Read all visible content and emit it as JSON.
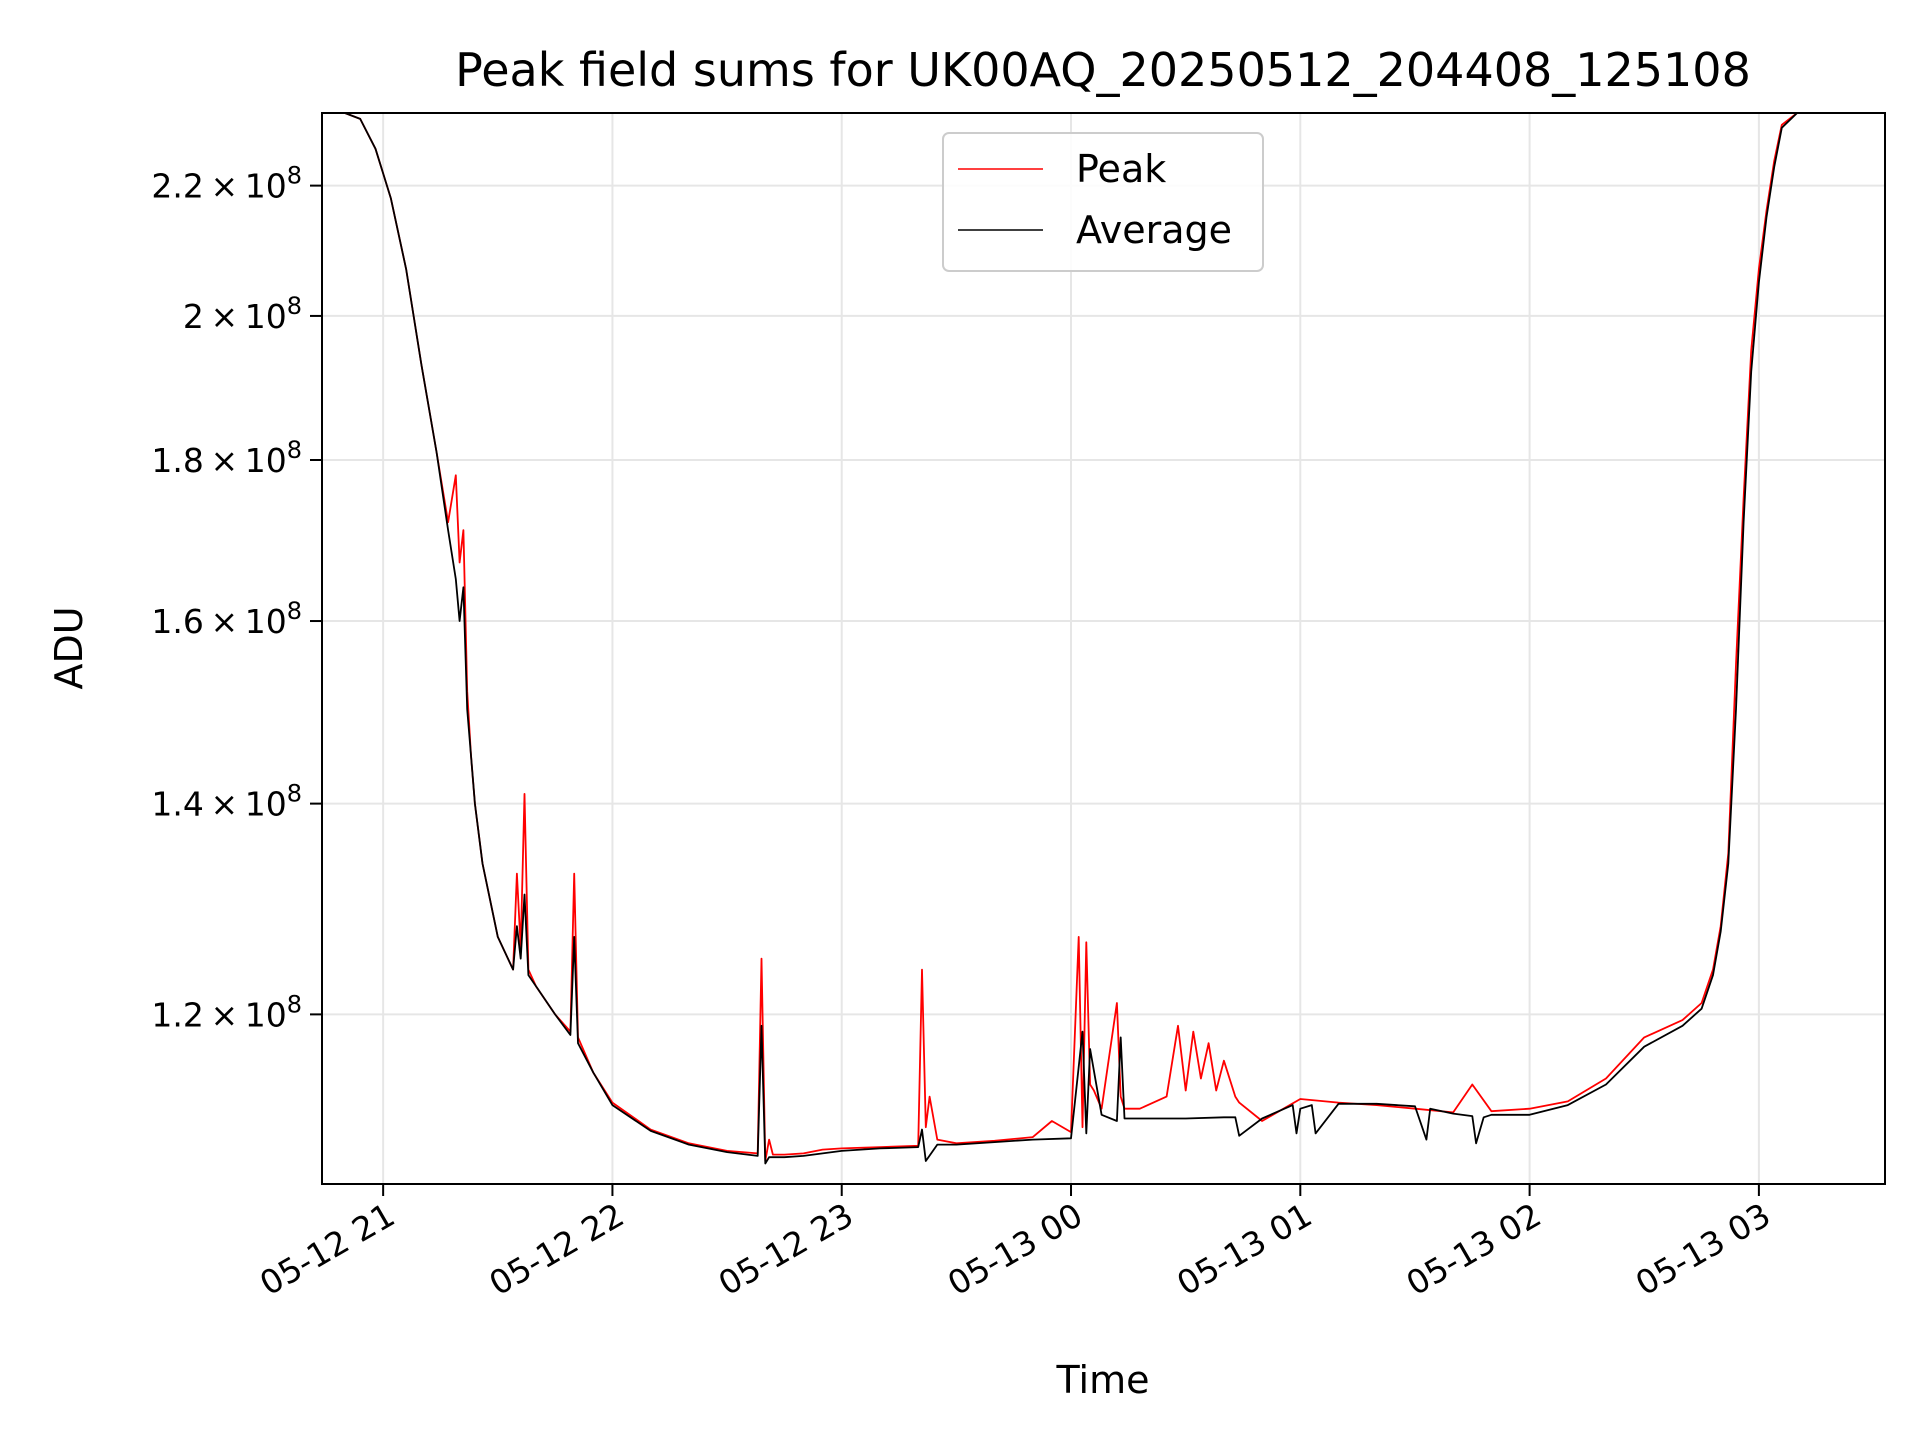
{
  "chart_data": {
    "type": "line",
    "title": "Peak field sums for UK00AQ_20250512_204408_125108",
    "xlabel": "Time",
    "ylabel": "ADU",
    "y_scale": "log",
    "ylim": [
      106000000,
      232000000
    ],
    "xlim": [
      "2025-05-12 20:44",
      "2025-05-13 03:33"
    ],
    "x_ticks": [
      {
        "value": "2025-05-12 21:00",
        "label": "05-12 21"
      },
      {
        "value": "2025-05-12 22:00",
        "label": "05-12 22"
      },
      {
        "value": "2025-05-12 23:00",
        "label": "05-12 23"
      },
      {
        "value": "2025-05-13 00:00",
        "label": "05-13 00"
      },
      {
        "value": "2025-05-13 01:00",
        "label": "05-13 01"
      },
      {
        "value": "2025-05-13 02:00",
        "label": "05-13 02"
      },
      {
        "value": "2025-05-13 03:00",
        "label": "05-13 03"
      }
    ],
    "y_ticks": [
      {
        "value": 120000000,
        "mantissa": "1.2",
        "base": "10",
        "exp": "8"
      },
      {
        "value": 140000000,
        "mantissa": "1.4",
        "base": "10",
        "exp": "8"
      },
      {
        "value": 160000000,
        "mantissa": "1.6",
        "base": "10",
        "exp": "8"
      },
      {
        "value": 180000000,
        "mantissa": "1.8",
        "base": "10",
        "exp": "8"
      },
      {
        "value": 200000000,
        "mantissa": "2",
        "base": "10",
        "exp": "8"
      },
      {
        "value": 220000000,
        "mantissa": "2.2",
        "base": "10",
        "exp": "8"
      }
    ],
    "grid": true,
    "legend_position": "top-center",
    "series": [
      {
        "name": "Peak",
        "color": "#ff0000",
        "x": [
          "2025-05-12 20:44",
          "2025-05-12 20:50",
          "2025-05-12 20:54",
          "2025-05-12 20:58",
          "2025-05-12 21:02",
          "2025-05-12 21:06",
          "2025-05-12 21:10",
          "2025-05-12 21:14",
          "2025-05-12 21:17",
          "2025-05-12 21:19",
          "2025-05-12 21:20",
          "2025-05-12 21:21",
          "2025-05-12 21:22",
          "2025-05-12 21:23",
          "2025-05-12 21:24",
          "2025-05-12 21:26",
          "2025-05-12 21:30",
          "2025-05-12 21:34",
          "2025-05-12 21:35",
          "2025-05-12 21:36",
          "2025-05-12 21:37",
          "2025-05-12 21:38",
          "2025-05-12 21:40",
          "2025-05-12 21:45",
          "2025-05-12 21:49",
          "2025-05-12 21:50",
          "2025-05-12 21:51",
          "2025-05-12 21:55",
          "2025-05-12 22:00",
          "2025-05-12 22:10",
          "2025-05-12 22:20",
          "2025-05-12 22:30",
          "2025-05-12 22:38",
          "2025-05-12 22:39",
          "2025-05-12 22:40",
          "2025-05-12 22:41",
          "2025-05-12 22:42",
          "2025-05-12 22:45",
          "2025-05-12 22:50",
          "2025-05-12 22:55",
          "2025-05-12 23:00",
          "2025-05-12 23:10",
          "2025-05-12 23:20",
          "2025-05-12 23:21",
          "2025-05-12 23:22",
          "2025-05-12 23:23",
          "2025-05-12 23:25",
          "2025-05-12 23:30",
          "2025-05-12 23:40",
          "2025-05-12 23:50",
          "2025-05-12 23:55",
          "2025-05-13 00:00",
          "2025-05-13 00:02",
          "2025-05-13 00:03",
          "2025-05-13 00:04",
          "2025-05-13 00:05",
          "2025-05-13 00:06",
          "2025-05-13 00:08",
          "2025-05-13 00:12",
          "2025-05-13 00:13",
          "2025-05-13 00:14",
          "2025-05-13 00:18",
          "2025-05-13 00:25",
          "2025-05-13 00:28",
          "2025-05-13 00:30",
          "2025-05-13 00:32",
          "2025-05-13 00:34",
          "2025-05-13 00:36",
          "2025-05-13 00:38",
          "2025-05-13 00:40",
          "2025-05-13 00:43",
          "2025-05-13 00:44",
          "2025-05-13 00:50",
          "2025-05-13 01:00",
          "2025-05-13 01:10",
          "2025-05-13 01:20",
          "2025-05-13 01:30",
          "2025-05-13 01:40",
          "2025-05-13 01:45",
          "2025-05-13 01:50",
          "2025-05-13 02:00",
          "2025-05-13 02:10",
          "2025-05-13 02:20",
          "2025-05-13 02:30",
          "2025-05-13 02:40",
          "2025-05-13 02:45",
          "2025-05-13 02:48",
          "2025-05-13 02:50",
          "2025-05-13 02:52",
          "2025-05-13 02:54",
          "2025-05-13 02:56",
          "2025-05-13 02:58",
          "2025-05-13 03:00",
          "2025-05-13 03:02",
          "2025-05-13 03:04",
          "2025-05-13 03:06",
          "2025-05-13 03:10",
          "2025-05-13 03:14"
        ],
        "y": [
          232000000,
          232000000,
          231000000,
          226000000,
          218000000,
          207000000,
          193000000,
          181000000,
          172000000,
          178000000,
          167000000,
          171000000,
          152000000,
          145000000,
          140000000,
          134000000,
          127000000,
          124000000,
          133000000,
          126000000,
          141000000,
          124000000,
          122500000,
          120000000,
          118500000,
          133000000,
          118000000,
          115000000,
          112500000,
          110300000,
          109200000,
          108600000,
          108400000,
          125000000,
          107800000,
          109500000,
          108300000,
          108300000,
          108400000,
          108700000,
          108800000,
          108900000,
          109000000,
          124000000,
          110500000,
          113000000,
          109500000,
          109200000,
          109400000,
          109700000,
          111000000,
          110100000,
          127000000,
          110500000,
          126500000,
          114000000,
          113500000,
          112000000,
          121000000,
          113000000,
          112000000,
          112000000,
          113000000,
          119000000,
          113500000,
          118500000,
          114500000,
          117500000,
          113500000,
          116000000,
          113000000,
          112500000,
          111000000,
          112800000,
          112500000,
          112300000,
          112000000,
          111700000,
          114000000,
          111800000,
          112000000,
          112600000,
          114500000,
          118000000,
          119500000,
          121000000,
          124000000,
          128000000,
          135000000,
          155000000,
          175000000,
          195000000,
          207000000,
          216000000,
          224000000,
          230000000,
          232000000,
          232000000
        ]
      },
      {
        "name": "Average",
        "color": "#000000",
        "x": [
          "2025-05-12 20:44",
          "2025-05-12 20:50",
          "2025-05-12 20:54",
          "2025-05-12 20:58",
          "2025-05-12 21:02",
          "2025-05-12 21:06",
          "2025-05-12 21:10",
          "2025-05-12 21:14",
          "2025-05-12 21:17",
          "2025-05-12 21:19",
          "2025-05-12 21:20",
          "2025-05-12 21:21",
          "2025-05-12 21:22",
          "2025-05-12 21:23",
          "2025-05-12 21:24",
          "2025-05-12 21:26",
          "2025-05-12 21:30",
          "2025-05-12 21:34",
          "2025-05-12 21:35",
          "2025-05-12 21:36",
          "2025-05-12 21:37",
          "2025-05-12 21:38",
          "2025-05-12 21:40",
          "2025-05-12 21:45",
          "2025-05-12 21:49",
          "2025-05-12 21:50",
          "2025-05-12 21:51",
          "2025-05-12 21:55",
          "2025-05-12 22:00",
          "2025-05-12 22:10",
          "2025-05-12 22:20",
          "2025-05-12 22:30",
          "2025-05-12 22:38",
          "2025-05-12 22:39",
          "2025-05-12 22:40",
          "2025-05-12 22:41",
          "2025-05-12 22:45",
          "2025-05-12 22:50",
          "2025-05-12 23:00",
          "2025-05-12 23:10",
          "2025-05-12 23:20",
          "2025-05-12 23:21",
          "2025-05-12 23:22",
          "2025-05-12 23:25",
          "2025-05-12 23:30",
          "2025-05-12 23:40",
          "2025-05-12 23:50",
          "2025-05-13 00:00",
          "2025-05-13 00:03",
          "2025-05-13 00:04",
          "2025-05-13 00:05",
          "2025-05-13 00:08",
          "2025-05-13 00:12",
          "2025-05-13 00:13",
          "2025-05-13 00:14",
          "2025-05-13 00:20",
          "2025-05-13 00:30",
          "2025-05-13 00:40",
          "2025-05-13 00:43",
          "2025-05-13 00:44",
          "2025-05-13 00:50",
          "2025-05-13 00:58",
          "2025-05-13 00:59",
          "2025-05-13 01:00",
          "2025-05-13 01:03",
          "2025-05-13 01:04",
          "2025-05-13 01:10",
          "2025-05-13 01:20",
          "2025-05-13 01:30",
          "2025-05-13 01:33",
          "2025-05-13 01:34",
          "2025-05-13 01:40",
          "2025-05-13 01:45",
          "2025-05-13 01:46",
          "2025-05-13 01:48",
          "2025-05-13 01:50",
          "2025-05-13 02:00",
          "2025-05-13 02:10",
          "2025-05-13 02:20",
          "2025-05-13 02:30",
          "2025-05-13 02:40",
          "2025-05-13 02:45",
          "2025-05-13 02:48",
          "2025-05-13 02:50",
          "2025-05-13 02:52",
          "2025-05-13 02:54",
          "2025-05-13 02:56",
          "2025-05-13 02:58",
          "2025-05-13 03:00",
          "2025-05-13 03:02",
          "2025-05-13 03:04",
          "2025-05-13 03:06",
          "2025-05-13 03:10",
          "2025-05-13 03:14"
        ],
        "y": [
          232000000,
          232000000,
          231000000,
          226000000,
          218000000,
          207000000,
          193000000,
          181000000,
          171000000,
          165000000,
          160000000,
          164000000,
          150000000,
          145000000,
          140000000,
          134000000,
          127000000,
          124000000,
          128000000,
          125000000,
          131000000,
          123500000,
          122500000,
          120000000,
          118200000,
          127000000,
          117500000,
          115000000,
          112300000,
          110200000,
          109100000,
          108500000,
          108200000,
          119000000,
          107600000,
          108100000,
          108100000,
          108200000,
          108600000,
          108800000,
          108900000,
          110300000,
          107800000,
          109100000,
          109100000,
          109300000,
          109500000,
          109600000,
          118500000,
          110000000,
          117000000,
          111500000,
          111000000,
          118000000,
          111200000,
          111200000,
          111200000,
          111300000,
          111300000,
          109800000,
          111200000,
          112300000,
          110000000,
          112000000,
          112300000,
          110000000,
          112400000,
          112400000,
          112200000,
          109500000,
          112000000,
          111600000,
          111400000,
          109200000,
          111300000,
          111500000,
          111500000,
          112300000,
          114000000,
          117200000,
          119000000,
          120500000,
          123500000,
          127500000,
          134000000,
          150000000,
          172000000,
          192000000,
          205000000,
          215000000,
          223000000,
          229500000,
          232000000,
          232000000
        ]
      }
    ]
  }
}
